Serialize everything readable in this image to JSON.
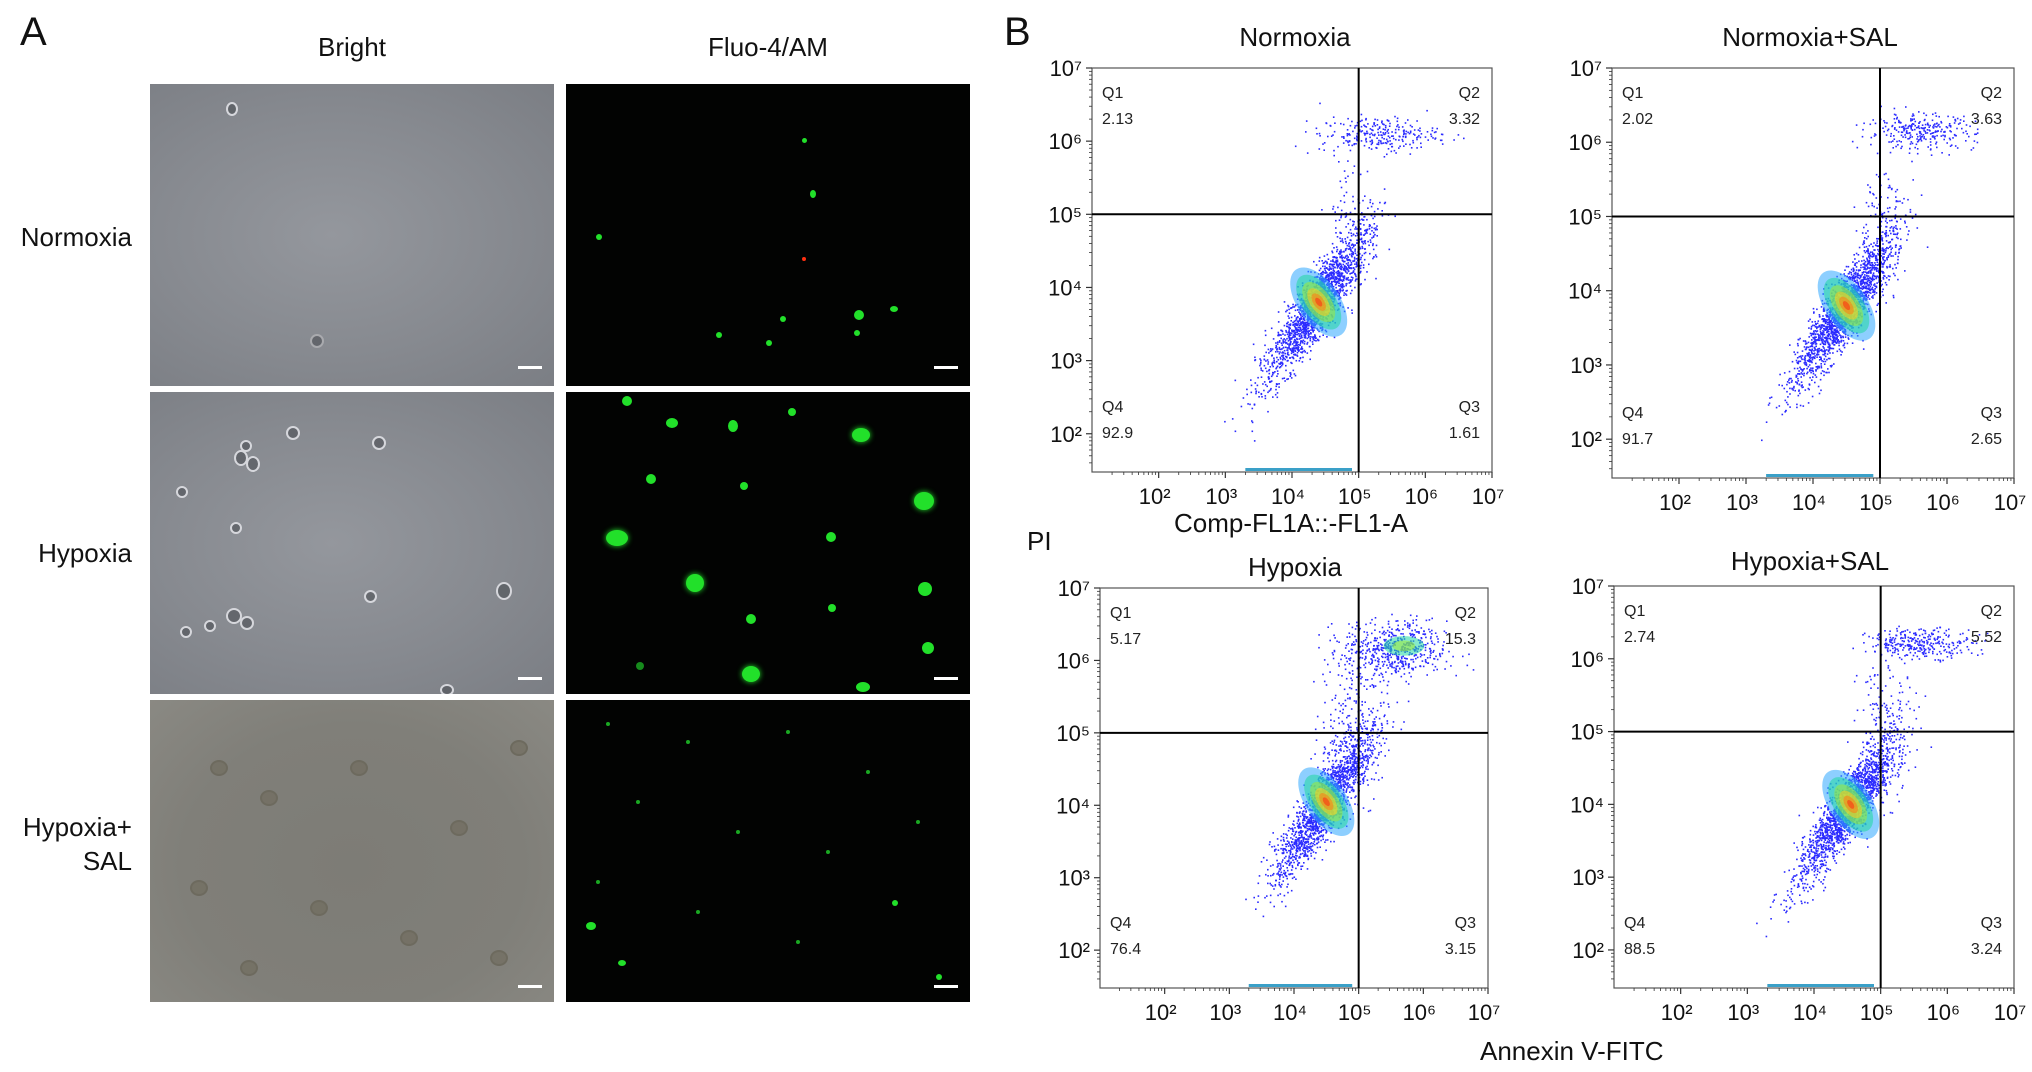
{
  "panel_a": {
    "letter": "A",
    "columns": [
      "Bright",
      "Fluo-4/AM"
    ],
    "rows": [
      "Normoxia",
      "Hypoxia",
      "Hypoxia+",
      "SAL"
    ]
  },
  "panel_b": {
    "letter": "B",
    "y_axis_label": "PI",
    "x_axis_label_top": "Comp-FL1A::-FL1-A",
    "x_axis_label_bottom": "Annexin V-FITC"
  },
  "colors": {
    "fluorescence": "#22e02a",
    "quadrant_line": "#000000",
    "dot_low": "#2b2bff",
    "dot_high": "#ff2a10"
  },
  "chart_data": [
    {
      "type": "scatter",
      "title": "Normoxia",
      "xscale": "log",
      "yscale": "log",
      "xlim": [
        10,
        10000000
      ],
      "ylim": [
        30,
        10000000
      ],
      "gate": {
        "x": 100000,
        "y": 100000
      },
      "quadrants": [
        {
          "name": "Q1",
          "value": "2.13"
        },
        {
          "name": "Q2",
          "value": "3.32"
        },
        {
          "name": "Q3",
          "value": "1.61"
        },
        {
          "name": "Q4",
          "value": "92.9"
        }
      ],
      "x_ticks": [
        "10²",
        "10³",
        "10⁴",
        "10⁵",
        "10⁶",
        "10⁷"
      ],
      "y_ticks": [
        "10²",
        "10³",
        "10⁴",
        "10⁵",
        "10⁶",
        "10⁷"
      ]
    },
    {
      "type": "scatter",
      "title": "Normoxia+SAL",
      "xscale": "log",
      "yscale": "log",
      "xlim": [
        10,
        10000000
      ],
      "ylim": [
        30,
        10000000
      ],
      "gate": {
        "x": 100000,
        "y": 100000
      },
      "quadrants": [
        {
          "name": "Q1",
          "value": "2.02"
        },
        {
          "name": "Q2",
          "value": "3.63"
        },
        {
          "name": "Q3",
          "value": "2.65"
        },
        {
          "name": "Q4",
          "value": "91.7"
        }
      ],
      "x_ticks": [
        "10²",
        "10³",
        "10⁴",
        "10⁵",
        "10⁶",
        "10⁷"
      ],
      "y_ticks": [
        "10²",
        "10³",
        "10⁴",
        "10⁵",
        "10⁶",
        "10⁷"
      ]
    },
    {
      "type": "scatter",
      "title": "Hypoxia",
      "xscale": "log",
      "yscale": "log",
      "xlim": [
        10,
        10000000
      ],
      "ylim": [
        30,
        10000000
      ],
      "gate": {
        "x": 100000,
        "y": 100000
      },
      "quadrants": [
        {
          "name": "Q1",
          "value": "5.17"
        },
        {
          "name": "Q2",
          "value": "15.3"
        },
        {
          "name": "Q3",
          "value": "3.15"
        },
        {
          "name": "Q4",
          "value": "76.4"
        }
      ],
      "x_ticks": [
        "10²",
        "10³",
        "10⁴",
        "10⁵",
        "10⁶",
        "10⁷"
      ],
      "y_ticks": [
        "10²",
        "10³",
        "10⁴",
        "10⁵",
        "10⁶",
        "10⁷"
      ]
    },
    {
      "type": "scatter",
      "title": "Hypoxia+SAL",
      "xscale": "log",
      "yscale": "log",
      "xlim": [
        10,
        10000000
      ],
      "ylim": [
        30,
        10000000
      ],
      "gate": {
        "x": 100000,
        "y": 100000
      },
      "quadrants": [
        {
          "name": "Q1",
          "value": "2.74"
        },
        {
          "name": "Q2",
          "value": "5.52"
        },
        {
          "name": "Q3",
          "value": "3.24"
        },
        {
          "name": "Q4",
          "value": "88.5"
        }
      ],
      "x_ticks": [
        "10²",
        "10³",
        "10⁴",
        "10⁵",
        "10⁶",
        "10⁷"
      ],
      "y_ticks": [
        "10²",
        "10³",
        "10⁴",
        "10⁵",
        "10⁶",
        "10⁷"
      ]
    }
  ]
}
